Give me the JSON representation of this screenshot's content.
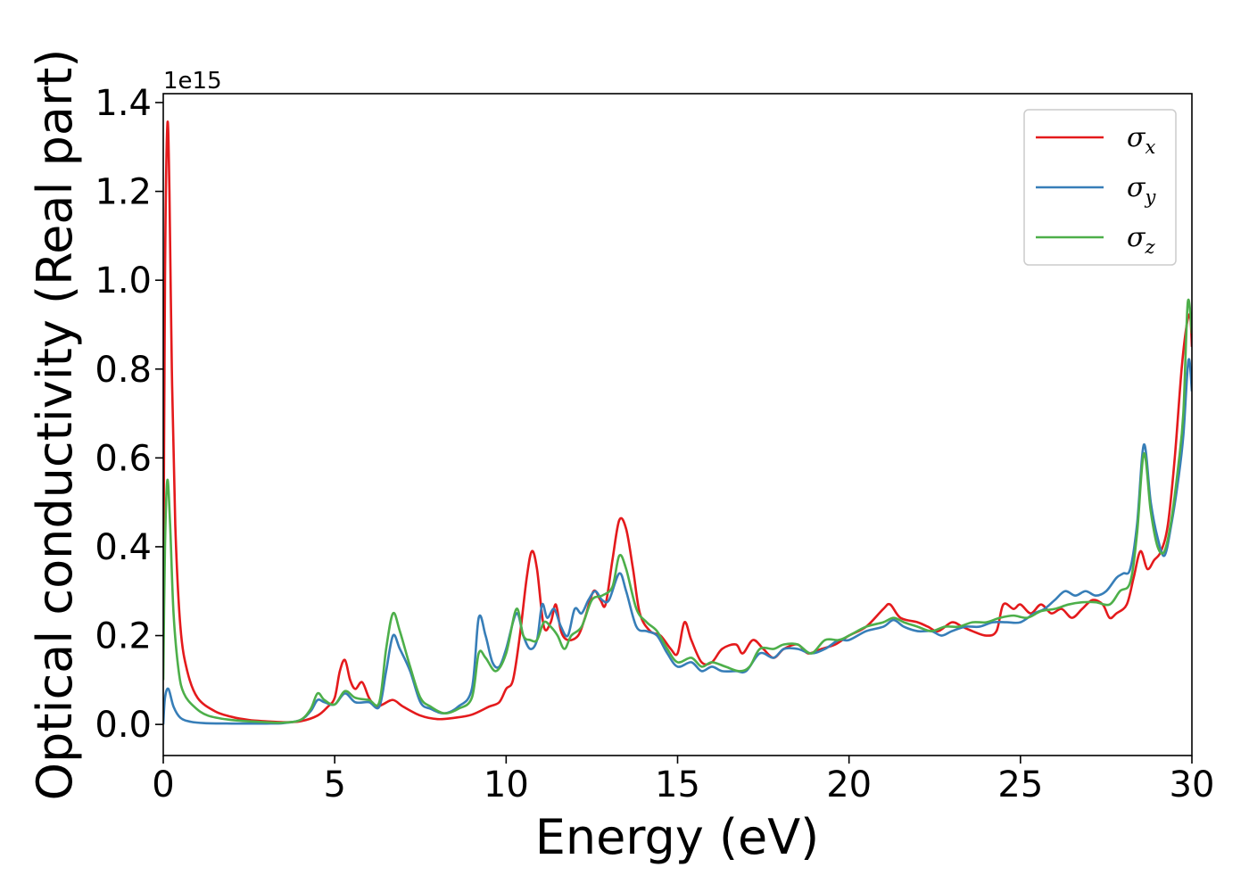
{
  "chart_data": {
    "type": "line",
    "xlabel": "Energy (eV)",
    "ylabel": "Optical conductivity (Real part)",
    "y_offset_label": "1e15",
    "xlim": [
      0,
      30
    ],
    "ylim": [
      -0.07,
      1.42
    ],
    "x_ticks": [
      0,
      5,
      10,
      15,
      20,
      25,
      30
    ],
    "y_ticks": [
      0.0,
      0.2,
      0.4,
      0.6,
      0.8,
      1.0,
      1.2,
      1.4
    ],
    "x_tick_labels": [
      "0",
      "5",
      "10",
      "15",
      "20",
      "25",
      "30"
    ],
    "y_tick_labels": [
      "0.0",
      "0.2",
      "0.4",
      "0.6",
      "0.8",
      "1.0",
      "1.2",
      "1.4"
    ],
    "grid": false,
    "legend_position": "top-right",
    "series": [
      {
        "name": "σx",
        "symbol": "σ",
        "subscript": "x",
        "color": "#e41a1c",
        "points": [
          [
            0,
            0.2
          ],
          [
            0.05,
            1.0
          ],
          [
            0.12,
            1.35
          ],
          [
            0.18,
            1.2
          ],
          [
            0.25,
            0.8
          ],
          [
            0.35,
            0.45
          ],
          [
            0.5,
            0.22
          ],
          [
            0.7,
            0.12
          ],
          [
            1.0,
            0.06
          ],
          [
            1.5,
            0.03
          ],
          [
            2.0,
            0.017
          ],
          [
            2.5,
            0.01
          ],
          [
            3.0,
            0.007
          ],
          [
            3.5,
            0.005
          ],
          [
            4.0,
            0.007
          ],
          [
            4.5,
            0.02
          ],
          [
            4.8,
            0.04
          ],
          [
            5.0,
            0.06
          ],
          [
            5.15,
            0.12
          ],
          [
            5.3,
            0.145
          ],
          [
            5.45,
            0.1
          ],
          [
            5.6,
            0.08
          ],
          [
            5.8,
            0.095
          ],
          [
            6.0,
            0.06
          ],
          [
            6.2,
            0.04
          ],
          [
            6.4,
            0.045
          ],
          [
            6.7,
            0.055
          ],
          [
            7.0,
            0.04
          ],
          [
            7.5,
            0.02
          ],
          [
            8.0,
            0.012
          ],
          [
            8.5,
            0.015
          ],
          [
            9.0,
            0.022
          ],
          [
            9.5,
            0.04
          ],
          [
            9.8,
            0.05
          ],
          [
            10.0,
            0.08
          ],
          [
            10.2,
            0.1
          ],
          [
            10.4,
            0.2
          ],
          [
            10.6,
            0.33
          ],
          [
            10.75,
            0.39
          ],
          [
            10.9,
            0.35
          ],
          [
            11.1,
            0.22
          ],
          [
            11.3,
            0.23
          ],
          [
            11.45,
            0.27
          ],
          [
            11.6,
            0.21
          ],
          [
            11.8,
            0.19
          ],
          [
            12.1,
            0.2
          ],
          [
            12.3,
            0.24
          ],
          [
            12.55,
            0.3
          ],
          [
            12.75,
            0.28
          ],
          [
            12.9,
            0.27
          ],
          [
            13.1,
            0.37
          ],
          [
            13.3,
            0.46
          ],
          [
            13.5,
            0.44
          ],
          [
            13.7,
            0.35
          ],
          [
            13.9,
            0.25
          ],
          [
            14.2,
            0.21
          ],
          [
            14.5,
            0.2
          ],
          [
            14.8,
            0.17
          ],
          [
            15.0,
            0.16
          ],
          [
            15.2,
            0.23
          ],
          [
            15.4,
            0.19
          ],
          [
            15.7,
            0.14
          ],
          [
            16.0,
            0.14
          ],
          [
            16.3,
            0.17
          ],
          [
            16.7,
            0.18
          ],
          [
            16.9,
            0.16
          ],
          [
            17.2,
            0.19
          ],
          [
            17.5,
            0.17
          ],
          [
            17.8,
            0.15
          ],
          [
            18.1,
            0.17
          ],
          [
            18.5,
            0.18
          ],
          [
            18.8,
            0.16
          ],
          [
            19.2,
            0.17
          ],
          [
            19.6,
            0.18
          ],
          [
            20.0,
            0.2
          ],
          [
            20.5,
            0.22
          ],
          [
            21.0,
            0.26
          ],
          [
            21.2,
            0.27
          ],
          [
            21.5,
            0.24
          ],
          [
            22.0,
            0.23
          ],
          [
            22.3,
            0.22
          ],
          [
            22.6,
            0.21
          ],
          [
            23.0,
            0.23
          ],
          [
            23.3,
            0.22
          ],
          [
            23.6,
            0.21
          ],
          [
            24.0,
            0.2
          ],
          [
            24.3,
            0.21
          ],
          [
            24.5,
            0.27
          ],
          [
            24.8,
            0.26
          ],
          [
            25.0,
            0.27
          ],
          [
            25.3,
            0.25
          ],
          [
            25.6,
            0.27
          ],
          [
            25.9,
            0.25
          ],
          [
            26.2,
            0.26
          ],
          [
            26.5,
            0.24
          ],
          [
            26.8,
            0.26
          ],
          [
            27.1,
            0.28
          ],
          [
            27.4,
            0.27
          ],
          [
            27.6,
            0.24
          ],
          [
            27.8,
            0.25
          ],
          [
            28.1,
            0.27
          ],
          [
            28.3,
            0.33
          ],
          [
            28.5,
            0.39
          ],
          [
            28.7,
            0.35
          ],
          [
            28.9,
            0.37
          ],
          [
            29.1,
            0.39
          ],
          [
            29.3,
            0.45
          ],
          [
            29.5,
            0.6
          ],
          [
            29.7,
            0.8
          ],
          [
            29.85,
            0.9
          ],
          [
            29.95,
            0.92
          ],
          [
            30.0,
            0.85
          ]
        ]
      },
      {
        "name": "σy",
        "symbol": "σ",
        "subscript": "y",
        "color": "#377eb8",
        "points": [
          [
            0,
            0.0
          ],
          [
            0.05,
            0.06
          ],
          [
            0.15,
            0.08
          ],
          [
            0.3,
            0.04
          ],
          [
            0.5,
            0.015
          ],
          [
            0.8,
            0.006
          ],
          [
            1.2,
            0.003
          ],
          [
            2.0,
            0.002
          ],
          [
            3.0,
            0.002
          ],
          [
            3.5,
            0.003
          ],
          [
            4.0,
            0.01
          ],
          [
            4.3,
            0.03
          ],
          [
            4.5,
            0.055
          ],
          [
            4.7,
            0.05
          ],
          [
            5.0,
            0.045
          ],
          [
            5.3,
            0.07
          ],
          [
            5.6,
            0.05
          ],
          [
            6.0,
            0.05
          ],
          [
            6.3,
            0.04
          ],
          [
            6.5,
            0.12
          ],
          [
            6.7,
            0.2
          ],
          [
            6.9,
            0.17
          ],
          [
            7.2,
            0.12
          ],
          [
            7.5,
            0.05
          ],
          [
            7.8,
            0.035
          ],
          [
            8.2,
            0.025
          ],
          [
            8.6,
            0.04
          ],
          [
            9.0,
            0.08
          ],
          [
            9.2,
            0.24
          ],
          [
            9.4,
            0.2
          ],
          [
            9.6,
            0.14
          ],
          [
            9.8,
            0.13
          ],
          [
            10.0,
            0.17
          ],
          [
            10.3,
            0.25
          ],
          [
            10.5,
            0.2
          ],
          [
            10.7,
            0.17
          ],
          [
            10.9,
            0.19
          ],
          [
            11.05,
            0.27
          ],
          [
            11.2,
            0.24
          ],
          [
            11.4,
            0.26
          ],
          [
            11.6,
            0.22
          ],
          [
            11.8,
            0.2
          ],
          [
            12.0,
            0.26
          ],
          [
            12.2,
            0.25
          ],
          [
            12.4,
            0.28
          ],
          [
            12.6,
            0.3
          ],
          [
            12.8,
            0.28
          ],
          [
            13.0,
            0.28
          ],
          [
            13.3,
            0.34
          ],
          [
            13.5,
            0.3
          ],
          [
            13.8,
            0.22
          ],
          [
            14.1,
            0.21
          ],
          [
            14.4,
            0.2
          ],
          [
            14.7,
            0.16
          ],
          [
            15.0,
            0.13
          ],
          [
            15.4,
            0.14
          ],
          [
            15.7,
            0.12
          ],
          [
            16.0,
            0.13
          ],
          [
            16.3,
            0.12
          ],
          [
            16.7,
            0.12
          ],
          [
            17.0,
            0.12
          ],
          [
            17.4,
            0.16
          ],
          [
            17.8,
            0.15
          ],
          [
            18.1,
            0.17
          ],
          [
            18.5,
            0.17
          ],
          [
            18.9,
            0.16
          ],
          [
            19.3,
            0.17
          ],
          [
            19.7,
            0.19
          ],
          [
            20.0,
            0.19
          ],
          [
            20.5,
            0.21
          ],
          [
            21.0,
            0.22
          ],
          [
            21.3,
            0.235
          ],
          [
            21.6,
            0.22
          ],
          [
            22.0,
            0.21
          ],
          [
            22.4,
            0.21
          ],
          [
            22.7,
            0.2
          ],
          [
            23.0,
            0.21
          ],
          [
            23.4,
            0.22
          ],
          [
            23.8,
            0.22
          ],
          [
            24.2,
            0.23
          ],
          [
            24.6,
            0.23
          ],
          [
            25.0,
            0.23
          ],
          [
            25.4,
            0.25
          ],
          [
            25.7,
            0.26
          ],
          [
            26.0,
            0.28
          ],
          [
            26.3,
            0.3
          ],
          [
            26.6,
            0.29
          ],
          [
            26.9,
            0.3
          ],
          [
            27.2,
            0.29
          ],
          [
            27.5,
            0.3
          ],
          [
            27.8,
            0.33
          ],
          [
            28.0,
            0.34
          ],
          [
            28.2,
            0.35
          ],
          [
            28.4,
            0.45
          ],
          [
            28.6,
            0.63
          ],
          [
            28.8,
            0.5
          ],
          [
            29.0,
            0.42
          ],
          [
            29.2,
            0.38
          ],
          [
            29.4,
            0.45
          ],
          [
            29.6,
            0.55
          ],
          [
            29.75,
            0.65
          ],
          [
            29.9,
            0.82
          ],
          [
            30.0,
            0.75
          ]
        ]
      },
      {
        "name": "σz",
        "symbol": "σ",
        "subscript": "z",
        "color": "#4daf4a",
        "points": [
          [
            0,
            0.1
          ],
          [
            0.05,
            0.4
          ],
          [
            0.12,
            0.55
          ],
          [
            0.2,
            0.45
          ],
          [
            0.3,
            0.25
          ],
          [
            0.45,
            0.12
          ],
          [
            0.6,
            0.07
          ],
          [
            0.9,
            0.04
          ],
          [
            1.3,
            0.02
          ],
          [
            2.0,
            0.01
          ],
          [
            3.0,
            0.005
          ],
          [
            3.5,
            0.004
          ],
          [
            4.0,
            0.01
          ],
          [
            4.3,
            0.035
          ],
          [
            4.5,
            0.07
          ],
          [
            4.7,
            0.055
          ],
          [
            5.0,
            0.045
          ],
          [
            5.3,
            0.075
          ],
          [
            5.6,
            0.06
          ],
          [
            6.0,
            0.055
          ],
          [
            6.3,
            0.05
          ],
          [
            6.5,
            0.17
          ],
          [
            6.7,
            0.25
          ],
          [
            6.9,
            0.21
          ],
          [
            7.2,
            0.13
          ],
          [
            7.5,
            0.06
          ],
          [
            7.8,
            0.04
          ],
          [
            8.2,
            0.025
          ],
          [
            8.6,
            0.035
          ],
          [
            9.0,
            0.06
          ],
          [
            9.2,
            0.16
          ],
          [
            9.4,
            0.15
          ],
          [
            9.7,
            0.12
          ],
          [
            10.0,
            0.16
          ],
          [
            10.3,
            0.26
          ],
          [
            10.5,
            0.2
          ],
          [
            10.7,
            0.19
          ],
          [
            10.9,
            0.19
          ],
          [
            11.1,
            0.23
          ],
          [
            11.3,
            0.22
          ],
          [
            11.5,
            0.2
          ],
          [
            11.7,
            0.17
          ],
          [
            11.9,
            0.2
          ],
          [
            12.2,
            0.22
          ],
          [
            12.5,
            0.28
          ],
          [
            12.8,
            0.29
          ],
          [
            13.1,
            0.31
          ],
          [
            13.3,
            0.38
          ],
          [
            13.5,
            0.35
          ],
          [
            13.8,
            0.26
          ],
          [
            14.1,
            0.23
          ],
          [
            14.4,
            0.21
          ],
          [
            14.7,
            0.17
          ],
          [
            15.0,
            0.14
          ],
          [
            15.4,
            0.15
          ],
          [
            15.7,
            0.13
          ],
          [
            16.0,
            0.14
          ],
          [
            16.4,
            0.13
          ],
          [
            16.8,
            0.12
          ],
          [
            17.1,
            0.13
          ],
          [
            17.4,
            0.17
          ],
          [
            17.8,
            0.17
          ],
          [
            18.1,
            0.18
          ],
          [
            18.5,
            0.18
          ],
          [
            18.9,
            0.16
          ],
          [
            19.3,
            0.19
          ],
          [
            19.7,
            0.19
          ],
          [
            20.0,
            0.2
          ],
          [
            20.5,
            0.22
          ],
          [
            21.0,
            0.23
          ],
          [
            21.3,
            0.24
          ],
          [
            21.6,
            0.23
          ],
          [
            22.0,
            0.22
          ],
          [
            22.4,
            0.21
          ],
          [
            22.8,
            0.22
          ],
          [
            23.2,
            0.22
          ],
          [
            23.6,
            0.23
          ],
          [
            24.0,
            0.23
          ],
          [
            24.4,
            0.24
          ],
          [
            24.8,
            0.245
          ],
          [
            25.2,
            0.24
          ],
          [
            25.6,
            0.255
          ],
          [
            26.0,
            0.26
          ],
          [
            26.4,
            0.27
          ],
          [
            26.8,
            0.275
          ],
          [
            27.2,
            0.275
          ],
          [
            27.6,
            0.27
          ],
          [
            27.9,
            0.3
          ],
          [
            28.2,
            0.32
          ],
          [
            28.4,
            0.43
          ],
          [
            28.6,
            0.61
          ],
          [
            28.8,
            0.48
          ],
          [
            29.0,
            0.4
          ],
          [
            29.2,
            0.39
          ],
          [
            29.4,
            0.46
          ],
          [
            29.6,
            0.58
          ],
          [
            29.75,
            0.7
          ],
          [
            29.88,
            0.95
          ],
          [
            30.0,
            0.88
          ]
        ]
      }
    ]
  }
}
